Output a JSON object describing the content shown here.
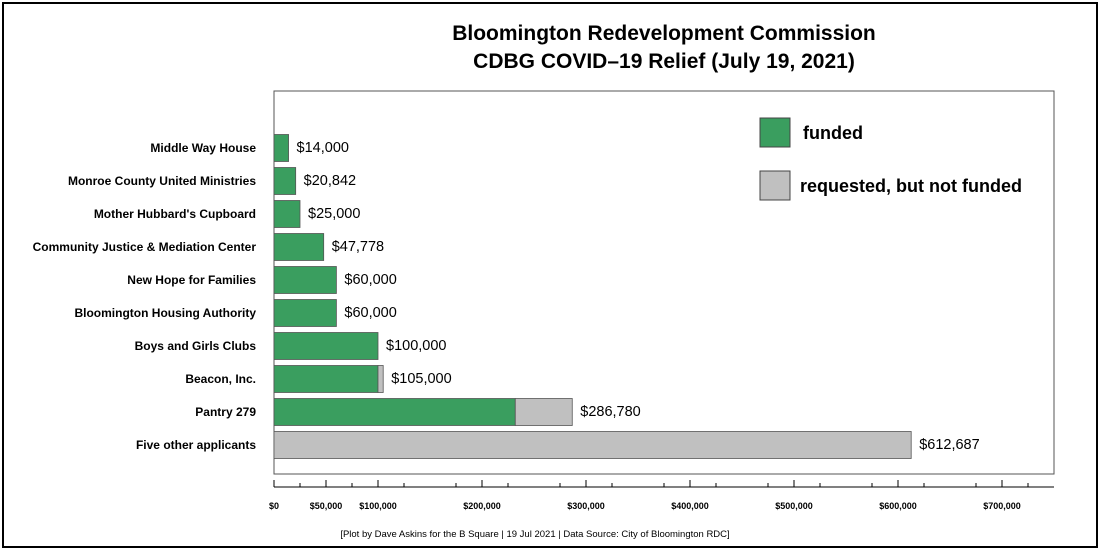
{
  "chart_data": {
    "type": "bar",
    "orientation": "horizontal",
    "stacked": true,
    "title": [
      "Bloomington Redevelopment Commission",
      "CDBG COVID–19 Relief (July 19, 2021)"
    ],
    "categories": [
      "Middle Way House",
      "Monroe County United Ministries",
      "Mother Hubbard's Cupboard",
      "Community Justice & Mediation Center",
      "New Hope for Families",
      "Bloomington Housing Authority",
      "Boys and Girls Clubs",
      "Beacon, Inc.",
      "Pantry 279",
      "Five other applicants"
    ],
    "series": [
      {
        "name": "funded",
        "color": "#3a9e5f",
        "values": [
          14000,
          20842,
          25000,
          47778,
          60000,
          60000,
          100000,
          100000,
          232000,
          0
        ]
      },
      {
        "name": "requested, but not funded",
        "color": "#c0c0c0",
        "values": [
          0,
          0,
          0,
          0,
          0,
          0,
          0,
          5000,
          54780,
          612687
        ]
      }
    ],
    "value_labels": [
      "$14,000",
      "$20,842",
      "$25,000",
      "$47,778",
      "$60,000",
      "$60,000",
      "$100,000",
      "$105,000",
      "$286,780",
      "$612,687"
    ],
    "x_ticks": [
      0,
      50000,
      100000,
      200000,
      300000,
      400000,
      500000,
      600000,
      700000
    ],
    "x_tick_labels": [
      "$0",
      "$50,000",
      "$100,000",
      "$200,000",
      "$300,000",
      "$400,000",
      "$500,000",
      "$600,000",
      "$700,000"
    ],
    "xlim": [
      0,
      750000
    ],
    "xlabel": "",
    "ylabel": "",
    "legend_position": "top-right",
    "grid": false
  },
  "caption": "[Plot by Dave Askins for the B Square | 19 Jul 2021 | Data Source: City of Bloomington RDC]"
}
